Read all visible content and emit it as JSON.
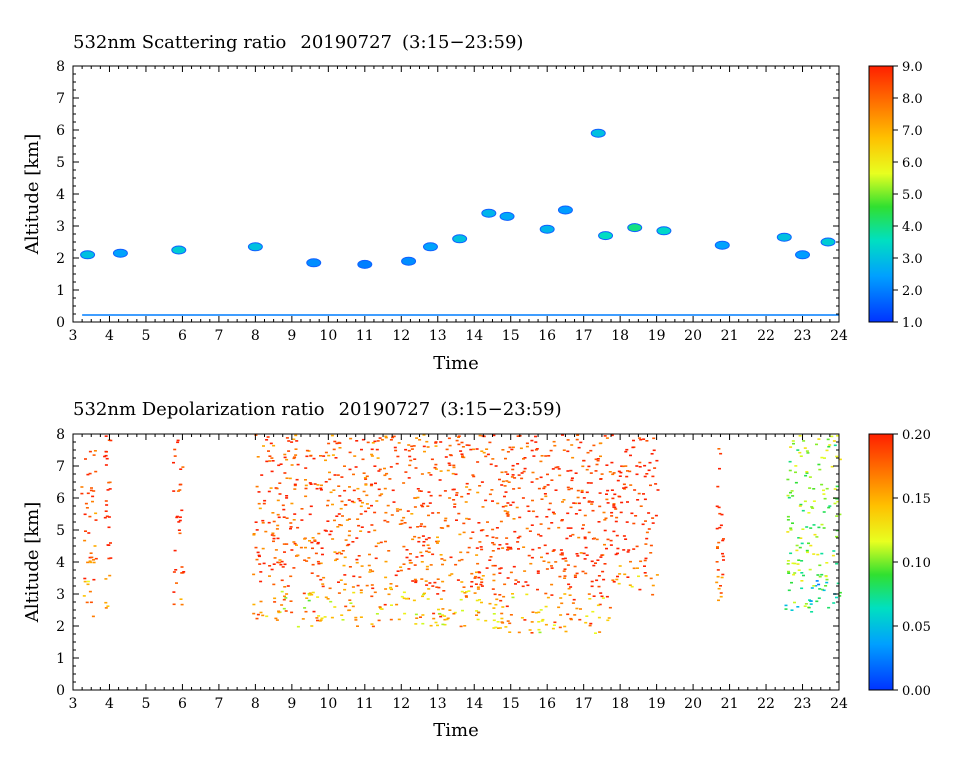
{
  "chart_data": [
    {
      "type": "heatmap",
      "title": "532nm Scattering ratio",
      "date": "20190727",
      "time_range": "(3:15−23:59)",
      "xlabel": "Time",
      "ylabel": "Altitude [km]",
      "xlim": [
        3,
        24
      ],
      "ylim": [
        0,
        8
      ],
      "x_ticks": [
        "3",
        "4",
        "5",
        "6",
        "7",
        "8",
        "9",
        "10",
        "11",
        "12",
        "13",
        "14",
        "15",
        "16",
        "17",
        "18",
        "19",
        "20",
        "21",
        "22",
        "23",
        "24"
      ],
      "y_ticks": [
        "0",
        "1",
        "2",
        "3",
        "4",
        "5",
        "6",
        "7",
        "8"
      ],
      "colorbar": {
        "range": [
          1.0,
          9.0
        ],
        "ticks": [
          "1.0",
          "2.0",
          "3.0",
          "4.0",
          "5.0",
          "6.0",
          "7.0",
          "8.0",
          "9.0"
        ]
      },
      "features": [
        {
          "time": 3.4,
          "altitude": 2.1,
          "value": 3.0
        },
        {
          "time": 4.3,
          "altitude": 2.15,
          "value": 2.5
        },
        {
          "time": 5.9,
          "altitude": 2.25,
          "value": 3.2
        },
        {
          "time": 8.0,
          "altitude": 2.35,
          "value": 3.0
        },
        {
          "time": 9.6,
          "altitude": 1.85,
          "value": 2.2
        },
        {
          "time": 11.0,
          "altitude": 1.8,
          "value": 2.0
        },
        {
          "time": 12.2,
          "altitude": 1.9,
          "value": 2.2
        },
        {
          "time": 12.8,
          "altitude": 2.35,
          "value": 2.5
        },
        {
          "time": 13.6,
          "altitude": 2.6,
          "value": 3.0
        },
        {
          "time": 14.4,
          "altitude": 3.4,
          "value": 2.8
        },
        {
          "time": 14.9,
          "altitude": 3.3,
          "value": 2.6
        },
        {
          "time": 16.0,
          "altitude": 2.9,
          "value": 2.8
        },
        {
          "time": 16.5,
          "altitude": 3.5,
          "value": 2.4
        },
        {
          "time": 17.4,
          "altitude": 5.9,
          "value": 3.0
        },
        {
          "time": 17.6,
          "altitude": 2.7,
          "value": 3.5
        },
        {
          "time": 18.4,
          "altitude": 2.95,
          "value": 4.0
        },
        {
          "time": 19.2,
          "altitude": 2.85,
          "value": 3.4
        },
        {
          "time": 20.8,
          "altitude": 2.4,
          "value": 2.5
        },
        {
          "time": 22.5,
          "altitude": 2.65,
          "value": 3.0
        },
        {
          "time": 23.0,
          "altitude": 2.1,
          "value": 2.4
        },
        {
          "time": 23.7,
          "altitude": 2.5,
          "value": 3.2
        }
      ],
      "surface_line": {
        "altitude": 0.22,
        "value": 2.0
      }
    },
    {
      "type": "heatmap",
      "title": "532nm Depolarization ratio",
      "date": "20190727",
      "time_range": "(3:15−23:59)",
      "xlabel": "Time",
      "ylabel": "Altitude [km]",
      "xlim": [
        3,
        24
      ],
      "ylim": [
        0,
        8
      ],
      "x_ticks": [
        "3",
        "4",
        "5",
        "6",
        "7",
        "8",
        "9",
        "10",
        "11",
        "12",
        "13",
        "14",
        "15",
        "16",
        "17",
        "18",
        "19",
        "20",
        "21",
        "22",
        "23",
        "24"
      ],
      "y_ticks": [
        "0",
        "1",
        "2",
        "3",
        "4",
        "5",
        "6",
        "7",
        "8"
      ],
      "colorbar": {
        "range": [
          0.0,
          0.2
        ],
        "ticks": [
          "0.00",
          "0.05",
          "0.10",
          "0.15",
          "0.20"
        ]
      },
      "regions": [
        {
          "t0": 3.2,
          "t1": 3.6,
          "base": 2.3,
          "top": 8.0,
          "value": 0.18
        },
        {
          "t0": 3.8,
          "t1": 4.0,
          "base": 2.5,
          "top": 8.0,
          "value": 0.2
        },
        {
          "t0": 5.7,
          "t1": 6.0,
          "base": 2.6,
          "top": 8.0,
          "value": 0.2
        },
        {
          "t0": 7.9,
          "t1": 14.3,
          "base": 2.0,
          "top": 8.0,
          "value": 0.18
        },
        {
          "t0": 14.3,
          "t1": 17.7,
          "base": 1.8,
          "top": 8.0,
          "value": 0.19
        },
        {
          "t0": 17.7,
          "t1": 19.0,
          "base": 3.0,
          "top": 8.0,
          "value": 0.2
        },
        {
          "t0": 20.6,
          "t1": 20.8,
          "base": 2.7,
          "top": 7.7,
          "value": 0.2
        },
        {
          "t0": 22.5,
          "t1": 24.0,
          "base": 2.4,
          "top": 8.0,
          "value": 0.1
        }
      ]
    }
  ]
}
